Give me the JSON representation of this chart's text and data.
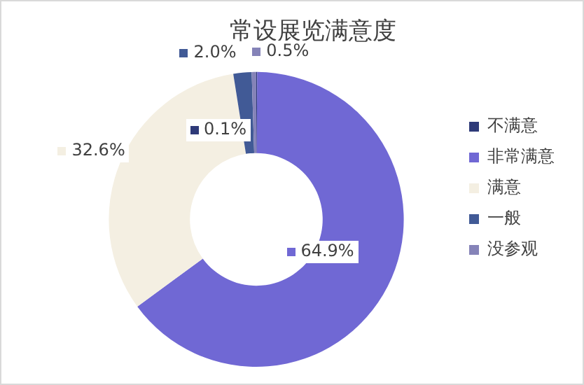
{
  "chart_data": {
    "type": "donut",
    "title": "常设展览满意度",
    "categories": [
      "不满意",
      "非常满意",
      "满意",
      "一般",
      "没参观"
    ],
    "values": [
      0.1,
      64.9,
      32.6,
      2.0,
      0.5
    ],
    "colors": [
      "#2e3a78",
      "#7068d4",
      "#f4efe2",
      "#415a96",
      "#8583b8"
    ],
    "value_labels": [
      "0.1%",
      "64.9%",
      "32.6%",
      "2.0%",
      "0.5%"
    ],
    "legend": "right"
  }
}
